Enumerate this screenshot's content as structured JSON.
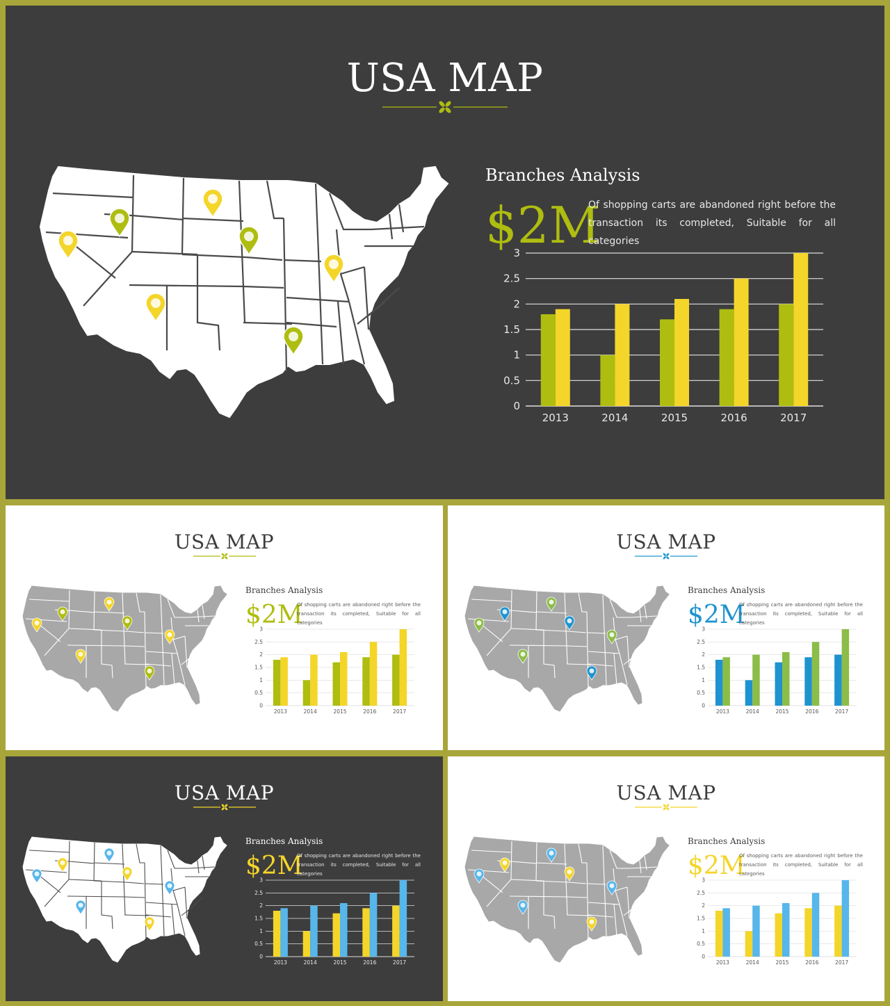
{
  "colors": {
    "frame": "#a8a63a",
    "dark_bg": "#3d3d3d",
    "light_bg": "#ffffff",
    "green": "#aebd10",
    "yellow": "#f4d529",
    "blue": "#1f93cf",
    "light_blue": "#57b6ea",
    "olive_green": "#8cbd48",
    "map_white": "#ffffff",
    "map_gray": "#a8a8a8"
  },
  "slides": [
    {
      "id": "main",
      "title": "USA MAP",
      "subtitle": "Branches Analysis",
      "amount": "$2M",
      "description": "Of shopping carts are abandoned right before the transaction its completed, Suitable for all categories",
      "desc_line1": "Of shopping carts are abandoned right before the",
      "desc_line2": "transaction its completed,  Suitable for all categories",
      "theme": "dark",
      "map_style": "white",
      "accent": "green",
      "ornament_color": "green",
      "pin_colors": [
        "yellow",
        "green",
        "yellow",
        "green",
        "yellow",
        "yellow",
        "green"
      ]
    },
    {
      "id": "white-green",
      "title": "USA MAP",
      "subtitle": "Branches Analysis",
      "amount": "$2M",
      "desc_line1": "Of shopping carts are abandoned right before the",
      "desc_line2": "transaction its completed,  Suitable for all categories",
      "theme": "light",
      "map_style": "gray",
      "accent": "green",
      "ornament_color": "green",
      "pin_colors": [
        "yellow",
        "green",
        "yellow",
        "green",
        "yellow",
        "yellow",
        "green"
      ]
    },
    {
      "id": "white-blue",
      "title": "USA MAP",
      "subtitle": "Branches Analysis",
      "amount": "$2M",
      "desc_line1": "Of shopping carts are abandoned right before the",
      "desc_line2": "transaction its completed,  Suitable for all categories",
      "theme": "light",
      "map_style": "gray",
      "accent": "blue",
      "ornament_color": "blue",
      "pin_colors": [
        "olive_green",
        "blue",
        "olive_green",
        "blue",
        "olive_green",
        "olive_green",
        "blue"
      ]
    },
    {
      "id": "dark-yellow",
      "title": "USA MAP",
      "subtitle": "Branches Analysis",
      "amount": "$2M",
      "desc_line1": "Of shopping carts are abandoned right before the",
      "desc_line2": "transaction its completed,  Suitable for all categories",
      "theme": "dark",
      "map_style": "white",
      "accent": "yellow",
      "ornament_color": "yellow",
      "pin_colors": [
        "light_blue",
        "yellow",
        "light_blue",
        "yellow",
        "light_blue",
        "light_blue",
        "yellow"
      ]
    },
    {
      "id": "white-yellow",
      "title": "USA MAP",
      "subtitle": "Branches Analysis",
      "amount": "$2M",
      "desc_line1": "Of shopping carts are abandoned right before the",
      "desc_line2": "transaction its completed,  Suitable for all categories",
      "theme": "light",
      "map_style": "gray",
      "accent": "yellow",
      "ornament_color": "yellow",
      "pin_colors": [
        "light_blue",
        "yellow",
        "light_blue",
        "yellow",
        "light_blue",
        "light_blue",
        "yellow"
      ]
    }
  ],
  "chart_data": [
    {
      "type": "bar",
      "categories": [
        "2013",
        "2014",
        "2015",
        "2016",
        "2017"
      ],
      "series": [
        {
          "values": [
            1.8,
            1.0,
            1.7,
            1.9,
            2.0
          ],
          "color": "#aebd10"
        },
        {
          "values": [
            1.9,
            2.0,
            2.1,
            2.5,
            3.0
          ],
          "color": "#f4d529"
        }
      ],
      "ylim": [
        0,
        3
      ],
      "yticks": [
        "0",
        "0.5",
        "1",
        "1.5",
        "2",
        "2.5",
        "3"
      ],
      "grid": true
    },
    {
      "type": "bar",
      "categories": [
        "2013",
        "2014",
        "2015",
        "2016",
        "2017"
      ],
      "series": [
        {
          "values": [
            1.8,
            1.0,
            1.7,
            1.9,
            2.0
          ],
          "color": "#aebd10"
        },
        {
          "values": [
            1.9,
            2.0,
            2.1,
            2.5,
            3.0
          ],
          "color": "#f4d529"
        }
      ],
      "ylim": [
        0,
        3
      ],
      "yticks": [
        "0",
        "0.5",
        "1",
        "1.5",
        "2",
        "2.5",
        "3"
      ],
      "grid": true
    },
    {
      "type": "bar",
      "categories": [
        "2013",
        "2014",
        "2015",
        "2016",
        "2017"
      ],
      "series": [
        {
          "values": [
            1.8,
            1.0,
            1.7,
            1.9,
            2.0
          ],
          "color": "#1f93cf"
        },
        {
          "values": [
            1.9,
            2.0,
            2.1,
            2.5,
            3.0
          ],
          "color": "#8cbd48"
        }
      ],
      "ylim": [
        0,
        3
      ],
      "yticks": [
        "0",
        "0.5",
        "1",
        "1.5",
        "2",
        "2.5",
        "3"
      ],
      "grid": true
    },
    {
      "type": "bar",
      "categories": [
        "2013",
        "2014",
        "2015",
        "2016",
        "2017"
      ],
      "series": [
        {
          "values": [
            1.8,
            1.0,
            1.7,
            1.9,
            2.0
          ],
          "color": "#f4d529"
        },
        {
          "values": [
            1.9,
            2.0,
            2.1,
            2.5,
            3.0
          ],
          "color": "#57b6ea"
        }
      ],
      "ylim": [
        0,
        3
      ],
      "yticks": [
        "0",
        "0.5",
        "1",
        "1.5",
        "2",
        "2.5",
        "3"
      ],
      "grid": true
    },
    {
      "type": "bar",
      "categories": [
        "2013",
        "2014",
        "2015",
        "2016",
        "2017"
      ],
      "series": [
        {
          "values": [
            1.8,
            1.0,
            1.7,
            1.9,
            2.0
          ],
          "color": "#f4d529"
        },
        {
          "values": [
            1.9,
            2.0,
            2.1,
            2.5,
            3.0
          ],
          "color": "#57b6ea"
        }
      ],
      "ylim": [
        0,
        3
      ],
      "yticks": [
        "0",
        "0.5",
        "1",
        "1.5",
        "2",
        "2.5",
        "3"
      ],
      "grid": true
    }
  ]
}
